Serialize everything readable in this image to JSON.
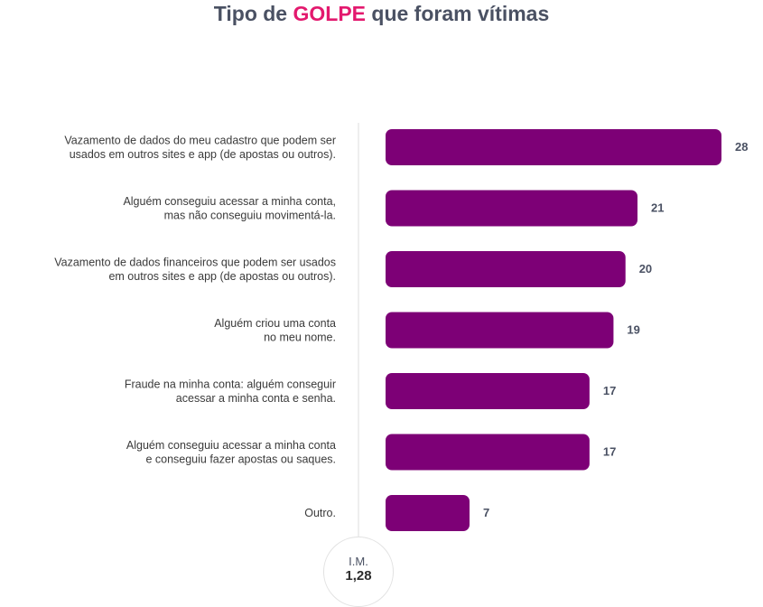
{
  "title": {
    "prefix": "Tipo de",
    "highlight": "GOLPE",
    "suffix": "que foram vítimas"
  },
  "colors": {
    "bar": "#7d0076",
    "accent": "#e3196e",
    "title": "#4a5163",
    "axis": "#dcdcdc"
  },
  "im_badge": {
    "label": "I.M.",
    "value": "1,28"
  },
  "chart_data": {
    "type": "bar",
    "orientation": "horizontal",
    "title": "Tipo de GOLPE que foram vítimas",
    "categories": [
      [
        "Vazamento de dados do meu cadastro que podem ser",
        "usados em outros sites e app (de apostas ou outros)."
      ],
      [
        "Alguém conseguiu acessar a minha conta,",
        "mas não conseguiu movimentá-la."
      ],
      [
        "Vazamento de dados financeiros que podem ser usados",
        "em outros sites e app (de apostas ou outros)."
      ],
      [
        "Alguém criou uma conta",
        "no meu nome."
      ],
      [
        "Fraude na minha conta: alguém conseguir",
        "acessar a minha conta e senha."
      ],
      [
        "Alguém conseguiu acessar a minha conta",
        "e conseguiu fazer apostas ou saques."
      ],
      [
        "Outro."
      ]
    ],
    "values": [
      28,
      21,
      20,
      19,
      17,
      17,
      7
    ],
    "xlim": [
      0,
      28
    ],
    "grid": false,
    "legend": "none"
  }
}
